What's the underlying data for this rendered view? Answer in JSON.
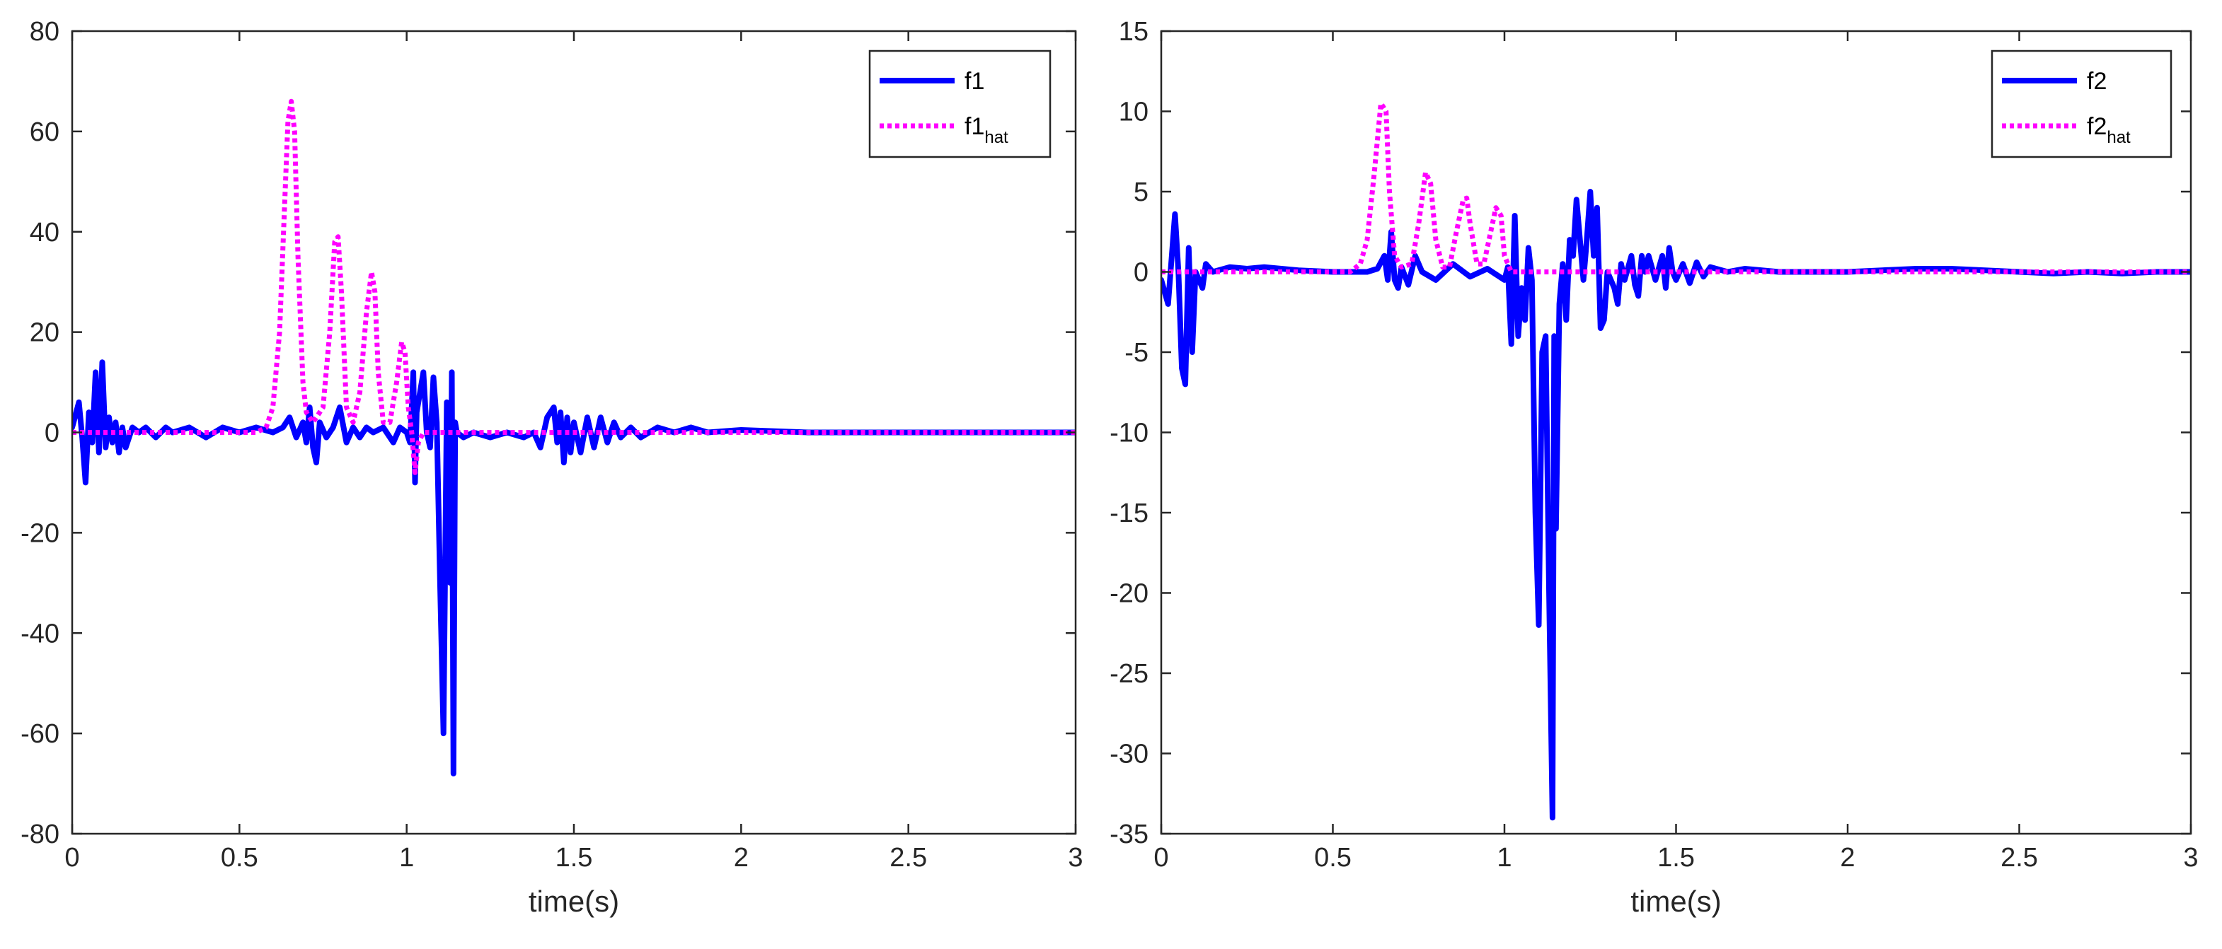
{
  "chart_data": [
    {
      "type": "line",
      "xlabel": "time(s)",
      "ylabel": "",
      "xlim": [
        0,
        3
      ],
      "ylim": [
        -80,
        80
      ],
      "xticks": [
        0,
        0.5,
        1,
        1.5,
        2,
        2.5,
        3
      ],
      "xtick_labels": [
        "0",
        "0.5",
        "1",
        "1.5",
        "2",
        "2.5",
        "3"
      ],
      "yticks": [
        -80,
        -60,
        -40,
        -20,
        0,
        20,
        40,
        60,
        80
      ],
      "ytick_labels": [
        "-80",
        "-60",
        "-40",
        "-20",
        "0",
        "20",
        "40",
        "60",
        "80"
      ],
      "grid": false,
      "legend_position": "top-right",
      "series": [
        {
          "name": "f1",
          "legend_main": "f1",
          "legend_sub": "",
          "color": "#0000ff",
          "style": "solid",
          "points": [
            [
              0,
              1
            ],
            [
              0.02,
              6
            ],
            [
              0.03,
              -1
            ],
            [
              0.04,
              -10
            ],
            [
              0.05,
              4
            ],
            [
              0.06,
              -2
            ],
            [
              0.07,
              12
            ],
            [
              0.08,
              -4
            ],
            [
              0.09,
              14
            ],
            [
              0.1,
              -3
            ],
            [
              0.11,
              3
            ],
            [
              0.12,
              -2
            ],
            [
              0.13,
              2
            ],
            [
              0.14,
              -4
            ],
            [
              0.15,
              1
            ],
            [
              0.16,
              -3
            ],
            [
              0.18,
              1
            ],
            [
              0.2,
              0
            ],
            [
              0.22,
              1
            ],
            [
              0.25,
              -1
            ],
            [
              0.28,
              1
            ],
            [
              0.3,
              0
            ],
            [
              0.35,
              1
            ],
            [
              0.4,
              -1
            ],
            [
              0.45,
              1
            ],
            [
              0.5,
              0
            ],
            [
              0.55,
              1
            ],
            [
              0.6,
              0
            ],
            [
              0.63,
              1
            ],
            [
              0.65,
              3
            ],
            [
              0.67,
              -1
            ],
            [
              0.69,
              2
            ],
            [
              0.7,
              -2
            ],
            [
              0.71,
              5
            ],
            [
              0.72,
              -3
            ],
            [
              0.73,
              -6
            ],
            [
              0.74,
              2
            ],
            [
              0.76,
              -1
            ],
            [
              0.78,
              1
            ],
            [
              0.8,
              5
            ],
            [
              0.82,
              -2
            ],
            [
              0.84,
              1
            ],
            [
              0.86,
              -1
            ],
            [
              0.88,
              1
            ],
            [
              0.9,
              0
            ],
            [
              0.93,
              1
            ],
            [
              0.96,
              -2
            ],
            [
              0.98,
              1
            ],
            [
              1.0,
              0
            ],
            [
              1.01,
              -2
            ],
            [
              1.02,
              12
            ],
            [
              1.025,
              -10
            ],
            [
              1.03,
              4
            ],
            [
              1.05,
              12
            ],
            [
              1.06,
              0
            ],
            [
              1.07,
              -3
            ],
            [
              1.08,
              11
            ],
            [
              1.09,
              2
            ],
            [
              1.1,
              -30
            ],
            [
              1.11,
              -60
            ],
            [
              1.12,
              6
            ],
            [
              1.13,
              -30
            ],
            [
              1.135,
              12
            ],
            [
              1.14,
              -68
            ],
            [
              1.145,
              2
            ],
            [
              1.15,
              0
            ],
            [
              1.17,
              -1
            ],
            [
              1.2,
              0
            ],
            [
              1.25,
              -1
            ],
            [
              1.3,
              0
            ],
            [
              1.35,
              -1
            ],
            [
              1.38,
              0
            ],
            [
              1.4,
              -3
            ],
            [
              1.42,
              3
            ],
            [
              1.44,
              5
            ],
            [
              1.45,
              -2
            ],
            [
              1.46,
              4
            ],
            [
              1.47,
              -6
            ],
            [
              1.48,
              3
            ],
            [
              1.49,
              -4
            ],
            [
              1.5,
              2
            ],
            [
              1.52,
              -4
            ],
            [
              1.54,
              3
            ],
            [
              1.56,
              -3
            ],
            [
              1.58,
              3
            ],
            [
              1.6,
              -2
            ],
            [
              1.62,
              2
            ],
            [
              1.64,
              -1
            ],
            [
              1.67,
              1
            ],
            [
              1.7,
              -1
            ],
            [
              1.75,
              1
            ],
            [
              1.8,
              0
            ],
            [
              1.85,
              1
            ],
            [
              1.9,
              0
            ],
            [
              2.0,
              0.5
            ],
            [
              2.2,
              0
            ],
            [
              2.5,
              0
            ],
            [
              3.0,
              0
            ]
          ]
        },
        {
          "name": "f1_hat",
          "legend_main": "f1",
          "legend_sub": "hat",
          "color": "#ff00ff",
          "style": "dotted",
          "points": [
            [
              0,
              0
            ],
            [
              0.55,
              0
            ],
            [
              0.58,
              1
            ],
            [
              0.6,
              5
            ],
            [
              0.62,
              20
            ],
            [
              0.635,
              45
            ],
            [
              0.645,
              62
            ],
            [
              0.655,
              66
            ],
            [
              0.665,
              60
            ],
            [
              0.675,
              35
            ],
            [
              0.69,
              10
            ],
            [
              0.7,
              4
            ],
            [
              0.72,
              2
            ],
            [
              0.75,
              5
            ],
            [
              0.77,
              20
            ],
            [
              0.785,
              38
            ],
            [
              0.795,
              39
            ],
            [
              0.805,
              28
            ],
            [
              0.82,
              5
            ],
            [
              0.84,
              2
            ],
            [
              0.86,
              8
            ],
            [
              0.88,
              24
            ],
            [
              0.895,
              32
            ],
            [
              0.905,
              28
            ],
            [
              0.915,
              12
            ],
            [
              0.93,
              2
            ],
            [
              0.95,
              2
            ],
            [
              0.97,
              10
            ],
            [
              0.985,
              18
            ],
            [
              0.995,
              16
            ],
            [
              1.005,
              5
            ],
            [
              1.015,
              0
            ],
            [
              1.025,
              -8
            ],
            [
              1.035,
              -2
            ],
            [
              1.05,
              0
            ],
            [
              1.2,
              0
            ],
            [
              3.0,
              0
            ]
          ]
        }
      ]
    },
    {
      "type": "line",
      "xlabel": "time(s)",
      "ylabel": "",
      "xlim": [
        0,
        3
      ],
      "ylim": [
        -35,
        15
      ],
      "xticks": [
        0,
        0.5,
        1,
        1.5,
        2,
        2.5,
        3
      ],
      "xtick_labels": [
        "0",
        "0.5",
        "1",
        "1.5",
        "2",
        "2.5",
        "3"
      ],
      "yticks": [
        -35,
        -30,
        -25,
        -20,
        -15,
        -10,
        -5,
        0,
        5,
        10,
        15
      ],
      "ytick_labels": [
        "-35",
        "-30",
        "-25",
        "-20",
        "-15",
        "-10",
        "-5",
        "0",
        "5",
        "10",
        "15"
      ],
      "grid": false,
      "legend_position": "top-right",
      "series": [
        {
          "name": "f2",
          "legend_main": "f2",
          "legend_sub": "",
          "color": "#0000ff",
          "style": "solid",
          "points": [
            [
              0,
              -0.5
            ],
            [
              0.02,
              -2
            ],
            [
              0.04,
              3.6
            ],
            [
              0.05,
              0
            ],
            [
              0.06,
              -6
            ],
            [
              0.07,
              -7
            ],
            [
              0.08,
              1.5
            ],
            [
              0.09,
              -5
            ],
            [
              0.1,
              0
            ],
            [
              0.12,
              -1
            ],
            [
              0.13,
              0.5
            ],
            [
              0.15,
              0
            ],
            [
              0.2,
              0.3
            ],
            [
              0.25,
              0.2
            ],
            [
              0.3,
              0.3
            ],
            [
              0.35,
              0.2
            ],
            [
              0.4,
              0.1
            ],
            [
              0.5,
              0
            ],
            [
              0.6,
              0
            ],
            [
              0.63,
              0.2
            ],
            [
              0.65,
              1
            ],
            [
              0.66,
              -0.5
            ],
            [
              0.67,
              2.5
            ],
            [
              0.68,
              -0.5
            ],
            [
              0.69,
              -1
            ],
            [
              0.7,
              0.3
            ],
            [
              0.72,
              -0.8
            ],
            [
              0.74,
              1
            ],
            [
              0.76,
              0
            ],
            [
              0.8,
              -0.5
            ],
            [
              0.85,
              0.5
            ],
            [
              0.9,
              -0.3
            ],
            [
              0.95,
              0.2
            ],
            [
              1.0,
              -0.5
            ],
            [
              1.01,
              0.3
            ],
            [
              1.02,
              -4.5
            ],
            [
              1.03,
              3.5
            ],
            [
              1.04,
              -4
            ],
            [
              1.05,
              -1
            ],
            [
              1.06,
              -3
            ],
            [
              1.07,
              1.5
            ],
            [
              1.08,
              -0.5
            ],
            [
              1.09,
              -15
            ],
            [
              1.1,
              -22
            ],
            [
              1.11,
              -5
            ],
            [
              1.12,
              -4
            ],
            [
              1.13,
              -20
            ],
            [
              1.14,
              -34
            ],
            [
              1.145,
              -4
            ],
            [
              1.15,
              -16
            ],
            [
              1.16,
              -2
            ],
            [
              1.17,
              0.5
            ],
            [
              1.18,
              -3
            ],
            [
              1.19,
              2
            ],
            [
              1.2,
              1
            ],
            [
              1.21,
              4.5
            ],
            [
              1.22,
              2
            ],
            [
              1.23,
              -0.5
            ],
            [
              1.24,
              2
            ],
            [
              1.25,
              5
            ],
            [
              1.26,
              1
            ],
            [
              1.27,
              4
            ],
            [
              1.28,
              -3.5
            ],
            [
              1.29,
              -3
            ],
            [
              1.3,
              0
            ],
            [
              1.32,
              -1
            ],
            [
              1.33,
              -2
            ],
            [
              1.34,
              0.5
            ],
            [
              1.35,
              -0.5
            ],
            [
              1.37,
              1
            ],
            [
              1.38,
              -0.8
            ],
            [
              1.39,
              -1.5
            ],
            [
              1.4,
              1
            ],
            [
              1.41,
              0
            ],
            [
              1.42,
              1
            ],
            [
              1.44,
              -0.5
            ],
            [
              1.46,
              1
            ],
            [
              1.47,
              -1
            ],
            [
              1.48,
              1.5
            ],
            [
              1.49,
              0
            ],
            [
              1.5,
              -0.5
            ],
            [
              1.52,
              0.5
            ],
            [
              1.54,
              -0.7
            ],
            [
              1.56,
              0.6
            ],
            [
              1.58,
              -0.3
            ],
            [
              1.6,
              0.3
            ],
            [
              1.65,
              0
            ],
            [
              1.7,
              0.2
            ],
            [
              1.8,
              0
            ],
            [
              2.0,
              0
            ],
            [
              2.1,
              0.1
            ],
            [
              2.2,
              0.2
            ],
            [
              2.3,
              0.2
            ],
            [
              2.4,
              0.1
            ],
            [
              2.5,
              0
            ],
            [
              2.6,
              -0.1
            ],
            [
              2.7,
              0
            ],
            [
              2.8,
              -0.1
            ],
            [
              2.9,
              0
            ],
            [
              3.0,
              0
            ]
          ]
        },
        {
          "name": "f2_hat",
          "legend_main": "f2",
          "legend_sub": "hat",
          "color": "#ff00ff",
          "style": "dotted",
          "points": [
            [
              0,
              0
            ],
            [
              0.55,
              0
            ],
            [
              0.58,
              0.5
            ],
            [
              0.6,
              2
            ],
            [
              0.62,
              6
            ],
            [
              0.64,
              10.5
            ],
            [
              0.655,
              10
            ],
            [
              0.665,
              5
            ],
            [
              0.68,
              1
            ],
            [
              0.7,
              0.3
            ],
            [
              0.73,
              0.5
            ],
            [
              0.75,
              3
            ],
            [
              0.77,
              6.2
            ],
            [
              0.785,
              5.5
            ],
            [
              0.8,
              2
            ],
            [
              0.82,
              0.3
            ],
            [
              0.84,
              0.3
            ],
            [
              0.86,
              2.5
            ],
            [
              0.88,
              4.5
            ],
            [
              0.89,
              4.6
            ],
            [
              0.9,
              3
            ],
            [
              0.92,
              0.5
            ],
            [
              0.94,
              0.5
            ],
            [
              0.96,
              2.5
            ],
            [
              0.975,
              4
            ],
            [
              0.99,
              3.5
            ],
            [
              1.0,
              1
            ],
            [
              1.02,
              0
            ],
            [
              1.2,
              0
            ],
            [
              3.0,
              0
            ]
          ]
        }
      ]
    }
  ]
}
